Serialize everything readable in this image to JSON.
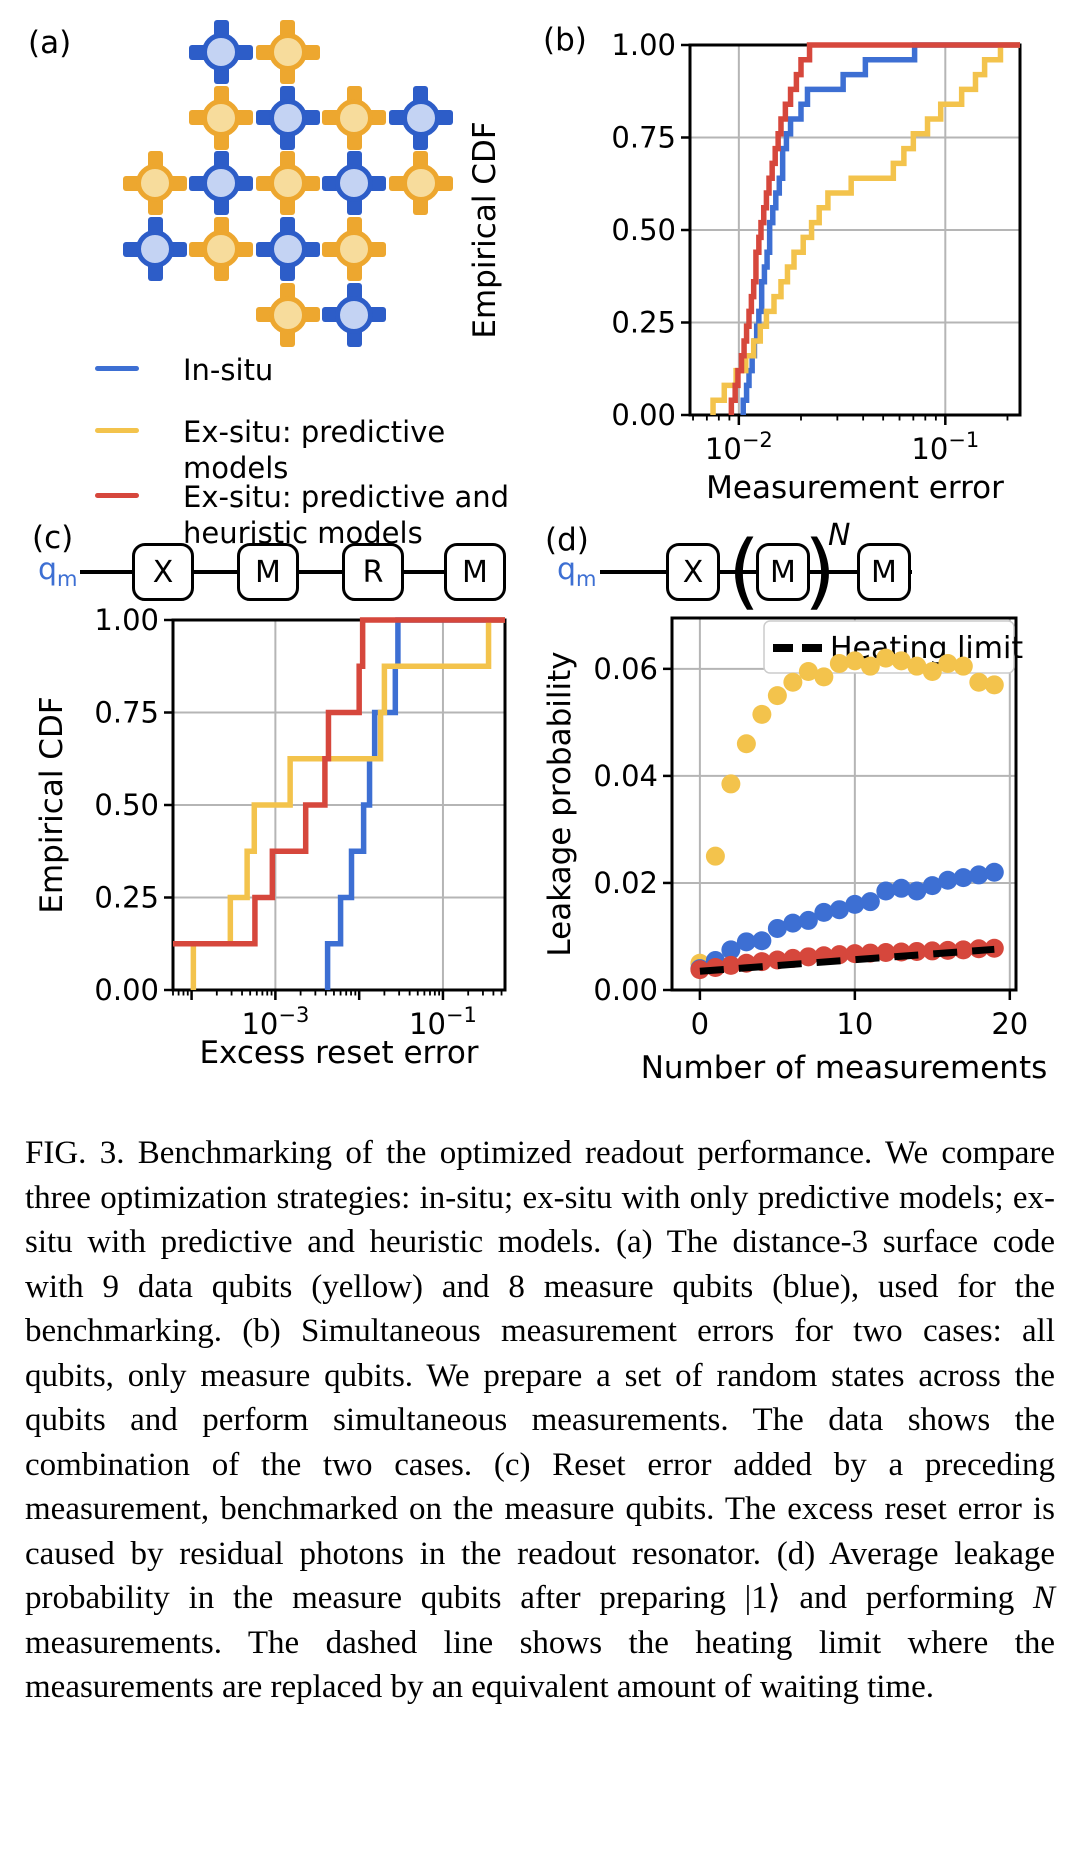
{
  "figure": {
    "panel_a": {
      "label": "(a)",
      "qubit_kinds": {
        "data": {
          "border": "#EDA72F",
          "fill": "#F7DC9C",
          "name": "data-qubit"
        },
        "measure": {
          "border": "#2D5DC8",
          "fill": "#C4D3F3",
          "name": "measure-qubit"
        }
      },
      "qubits": [
        {
          "row": 0,
          "col": 1,
          "kind": "measure"
        },
        {
          "row": 0,
          "col": 2,
          "kind": "data"
        },
        {
          "row": 1,
          "col": 1,
          "kind": "data"
        },
        {
          "row": 1,
          "col": 2,
          "kind": "measure"
        },
        {
          "row": 1,
          "col": 3,
          "kind": "data"
        },
        {
          "row": 1,
          "col": 4,
          "kind": "measure"
        },
        {
          "row": 2,
          "col": 0,
          "kind": "data"
        },
        {
          "row": 2,
          "col": 1,
          "kind": "measure"
        },
        {
          "row": 2,
          "col": 2,
          "kind": "data"
        },
        {
          "row": 2,
          "col": 3,
          "kind": "measure"
        },
        {
          "row": 2,
          "col": 4,
          "kind": "data"
        },
        {
          "row": 3,
          "col": 0,
          "kind": "measure"
        },
        {
          "row": 3,
          "col": 1,
          "kind": "data"
        },
        {
          "row": 3,
          "col": 2,
          "kind": "measure"
        },
        {
          "row": 3,
          "col": 3,
          "kind": "data"
        },
        {
          "row": 4,
          "col": 2,
          "kind": "data"
        },
        {
          "row": 4,
          "col": 3,
          "kind": "measure"
        }
      ]
    },
    "legend": {
      "items": [
        {
          "label": "In-situ",
          "color": "#3D6FD3"
        },
        {
          "label": "Ex-situ: predictive models",
          "color": "#F3C34C"
        },
        {
          "label": "Ex-situ: predictive and\nheuristic models",
          "color": "#D6473C"
        }
      ]
    },
    "panel_b": {
      "label": "(b)"
    },
    "panel_c": {
      "label": "(c)",
      "circuit": {
        "qubit_label": "q",
        "qubit_subscript": "m",
        "gates": [
          "X",
          "M",
          "R",
          "M"
        ]
      }
    },
    "panel_d": {
      "label": "(d)",
      "circuit": {
        "qubit_label": "q",
        "qubit_subscript": "m",
        "gate_x": "X",
        "open_paren": "(",
        "repeated_gate": "M",
        "close_paren": ")",
        "exponent": "N",
        "final_gate": "M"
      }
    }
  },
  "chart_data": [
    {
      "id": "panel-b",
      "type": "line",
      "subtype": "ecdf-steps",
      "xlabel": "Measurement error",
      "ylabel": "Empirical CDF",
      "xscale": "log",
      "xlim": [
        0.0058,
        0.23
      ],
      "ylim": [
        0,
        1
      ],
      "xticks_labeled": [
        0.01,
        0.1
      ],
      "yticks": [
        0,
        0.25,
        0.5,
        0.75,
        1
      ],
      "ytick_labels": [
        "0.00",
        "0.25",
        "0.50",
        "0.75",
        "1.00"
      ],
      "grid": true,
      "legend_position": "none",
      "series": [
        {
          "name": "In-situ",
          "color": "#3D6FD3",
          "steps": [
            [
              0.0105,
              0.04
            ],
            [
              0.0109,
              0.08
            ],
            [
              0.0112,
              0.12
            ],
            [
              0.0116,
              0.16
            ],
            [
              0.0119,
              0.2
            ],
            [
              0.0122,
              0.24
            ],
            [
              0.0125,
              0.28
            ],
            [
              0.0129,
              0.36
            ],
            [
              0.0133,
              0.4
            ],
            [
              0.0137,
              0.44
            ],
            [
              0.0141,
              0.52
            ],
            [
              0.0146,
              0.56
            ],
            [
              0.0151,
              0.6
            ],
            [
              0.0157,
              0.64
            ],
            [
              0.0163,
              0.72
            ],
            [
              0.017,
              0.76
            ],
            [
              0.0178,
              0.8
            ],
            [
              0.02,
              0.84
            ],
            [
              0.0215,
              0.88
            ],
            [
              0.032,
              0.92
            ],
            [
              0.041,
              0.96
            ],
            [
              0.071,
              1.0
            ]
          ]
        },
        {
          "name": "Ex-situ: predictive models",
          "color": "#F3C34C",
          "steps": [
            [
              0.0075,
              0.04
            ],
            [
              0.0085,
              0.08
            ],
            [
              0.0097,
              0.12
            ],
            [
              0.0108,
              0.16
            ],
            [
              0.0118,
              0.2
            ],
            [
              0.0127,
              0.24
            ],
            [
              0.0136,
              0.28
            ],
            [
              0.0148,
              0.32
            ],
            [
              0.016,
              0.36
            ],
            [
              0.0172,
              0.4
            ],
            [
              0.0185,
              0.44
            ],
            [
              0.0205,
              0.48
            ],
            [
              0.0225,
              0.52
            ],
            [
              0.0245,
              0.56
            ],
            [
              0.027,
              0.6
            ],
            [
              0.035,
              0.64
            ],
            [
              0.056,
              0.68
            ],
            [
              0.063,
              0.72
            ],
            [
              0.07,
              0.76
            ],
            [
              0.082,
              0.8
            ],
            [
              0.095,
              0.84
            ],
            [
              0.12,
              0.88
            ],
            [
              0.14,
              0.92
            ],
            [
              0.155,
              0.96
            ],
            [
              0.185,
              1.0
            ]
          ]
        },
        {
          "name": "Ex-situ: predictive and heuristic models",
          "color": "#D6473C",
          "steps": [
            [
              0.0092,
              0.04
            ],
            [
              0.0096,
              0.08
            ],
            [
              0.0099,
              0.12
            ],
            [
              0.0103,
              0.16
            ],
            [
              0.0106,
              0.2
            ],
            [
              0.0109,
              0.24
            ],
            [
              0.0112,
              0.28
            ],
            [
              0.0115,
              0.32
            ],
            [
              0.0118,
              0.36
            ],
            [
              0.0121,
              0.44
            ],
            [
              0.0125,
              0.48
            ],
            [
              0.0128,
              0.52
            ],
            [
              0.0132,
              0.56
            ],
            [
              0.0136,
              0.6
            ],
            [
              0.014,
              0.64
            ],
            [
              0.0145,
              0.68
            ],
            [
              0.015,
              0.72
            ],
            [
              0.0155,
              0.76
            ],
            [
              0.016,
              0.8
            ],
            [
              0.0168,
              0.84
            ],
            [
              0.0178,
              0.88
            ],
            [
              0.019,
              0.92
            ],
            [
              0.02,
              0.96
            ],
            [
              0.022,
              1.0
            ]
          ]
        }
      ]
    },
    {
      "id": "panel-c",
      "type": "line",
      "subtype": "ecdf-steps",
      "xlabel": "Excess reset error",
      "ylabel": "Empirical CDF",
      "xscale": "log",
      "xlim": [
        6e-05,
        0.55
      ],
      "ylim": [
        0,
        1
      ],
      "xticks_labeled": [
        0.001,
        0.1
      ],
      "yticks": [
        0,
        0.25,
        0.5,
        0.75,
        1
      ],
      "ytick_labels": [
        "0.00",
        "0.25",
        "0.50",
        "0.75",
        "1.00"
      ],
      "grid": true,
      "legend_position": "none",
      "series": [
        {
          "name": "In-situ",
          "color": "#3D6FD3",
          "steps": [
            [
              0.0042,
              0.125
            ],
            [
              0.006,
              0.25
            ],
            [
              0.0081,
              0.375
            ],
            [
              0.0113,
              0.5
            ],
            [
              0.0133,
              0.625
            ],
            [
              0.0153,
              0.75
            ],
            [
              0.027,
              0.875
            ],
            [
              0.029,
              1.0
            ]
          ]
        },
        {
          "name": "Ex-situ: predictive models",
          "color": "#F3C34C",
          "steps": [
            [
              0.000105,
              0.125
            ],
            [
              0.00029,
              0.25
            ],
            [
              0.00046,
              0.375
            ],
            [
              0.00056,
              0.5
            ],
            [
              0.0015,
              0.625
            ],
            [
              0.018,
              0.75
            ],
            [
              0.02,
              0.875
            ],
            [
              0.35,
              1.0
            ]
          ]
        },
        {
          "name": "Ex-situ: predictive and heuristic models",
          "color": "#D6473C",
          "steps": [
            [
              6e-05,
              0.125
            ],
            [
              0.00057,
              0.25
            ],
            [
              0.00092,
              0.375
            ],
            [
              0.0023,
              0.5
            ],
            [
              0.0039,
              0.625
            ],
            [
              0.0043,
              0.75
            ],
            [
              0.01,
              0.875
            ],
            [
              0.011,
              1.0
            ]
          ]
        }
      ]
    },
    {
      "id": "panel-d",
      "type": "scatter",
      "xlabel": "Number of measurements",
      "ylabel": "Leakage probability",
      "xlim": [
        -1.8,
        20.4
      ],
      "ylim": [
        0,
        0.0695
      ],
      "xticks": [
        0,
        10,
        20
      ],
      "yticks": [
        0,
        0.02,
        0.04,
        0.06
      ],
      "ytick_labels": [
        "0.00",
        "0.02",
        "0.04",
        "0.06"
      ],
      "grid": true,
      "legend": {
        "label": "Heating limit",
        "style": "dashed",
        "color": "#000000"
      },
      "x": [
        0,
        1,
        2,
        3,
        4,
        5,
        6,
        7,
        8,
        9,
        10,
        11,
        12,
        13,
        14,
        15,
        16,
        17,
        18,
        19
      ],
      "series": [
        {
          "name": "Ex-situ: predictive models",
          "color": "#F3C34C",
          "marker": "circle",
          "values": [
            0.005,
            0.025,
            0.0385,
            0.046,
            0.0515,
            0.055,
            0.0575,
            0.0595,
            0.0585,
            0.061,
            0.0615,
            0.0605,
            0.062,
            0.0615,
            0.0605,
            0.0595,
            0.061,
            0.0605,
            0.0575,
            0.057
          ]
        },
        {
          "name": "In-situ",
          "color": "#3D6FD3",
          "marker": "circle",
          "values": [
            0.004,
            0.0055,
            0.0075,
            0.009,
            0.0092,
            0.0115,
            0.0125,
            0.013,
            0.0145,
            0.015,
            0.016,
            0.0165,
            0.0185,
            0.019,
            0.0185,
            0.0195,
            0.0205,
            0.021,
            0.0215,
            0.022
          ]
        },
        {
          "name": "Ex-situ: predictive and heuristic models",
          "color": "#D6473C",
          "marker": "circle",
          "values": [
            0.0038,
            0.0042,
            0.0046,
            0.005,
            0.0053,
            0.0056,
            0.0059,
            0.0062,
            0.0064,
            0.0066,
            0.0068,
            0.0069,
            0.007,
            0.0071,
            0.0072,
            0.0073,
            0.0074,
            0.0075,
            0.0077,
            0.0078
          ]
        }
      ],
      "heating_limit": {
        "name": "Heating limit",
        "color": "#000000",
        "dash": true,
        "x": [
          0,
          19
        ],
        "y": [
          0.0035,
          0.0076
        ]
      }
    }
  ],
  "caption": {
    "segments": [
      {
        "text": "FIG. 3.  Benchmarking of the optimized readout performance. We compare three optimization strategies: in-situ; ex-situ with only predictive models; ex-situ with predictive and heuristic models. (a) The distance-3 surface code with 9 data qubits (yellow) and 8 measure qubits (blue), used for the benchmarking. (b) Simultaneous measurement errors for two cases: all qubits, only measure qubits. We prepare a set of random states across the qubits and perform simultaneous measurements. The data shows the combination of the two cases. (c) Reset error added by a preceding measurement, benchmarked on the measure qubits. The excess reset error is caused by residual photons in the readout resonator. (d) Average leakage probability in the measure qubits after preparing |1⟩ and performing ",
        "italic": false
      },
      {
        "text": "N",
        "italic": true
      },
      {
        "text": " measurements. The dashed line shows the heating limit where the measurements are replaced by an equivalent amount of waiting time.",
        "italic": false
      }
    ]
  }
}
